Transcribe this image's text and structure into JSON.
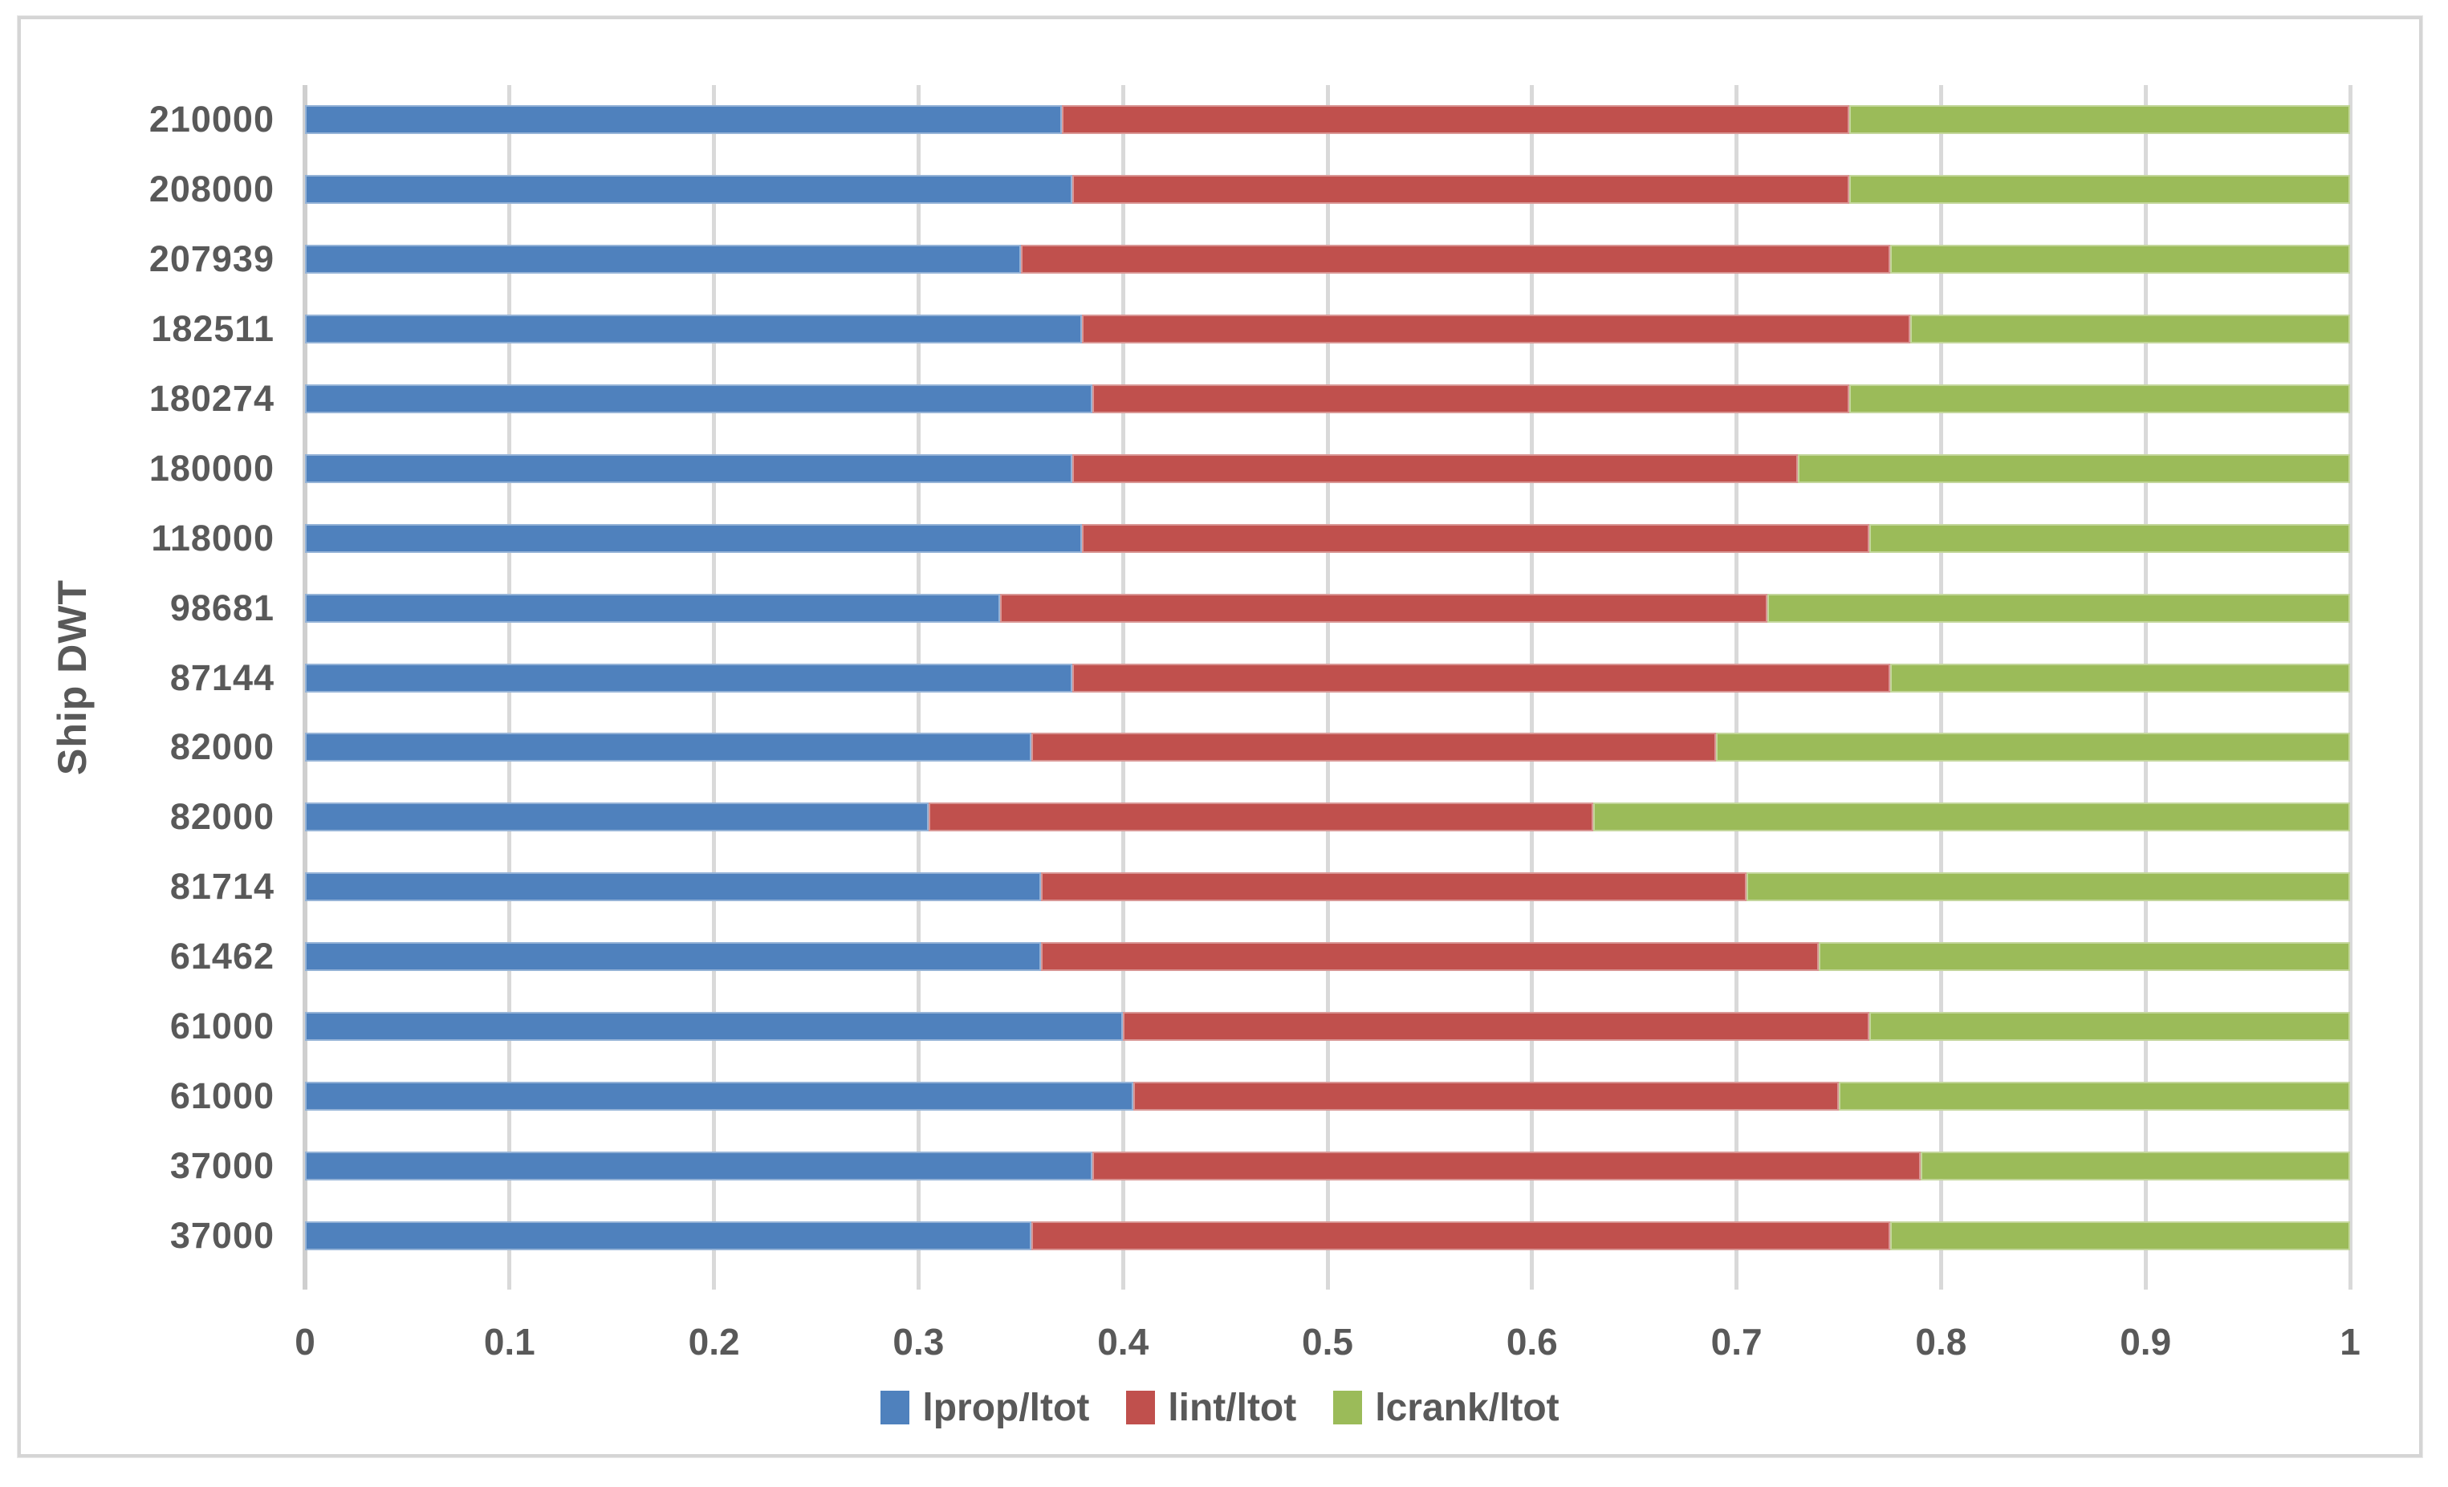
{
  "chart_data": {
    "type": "bar",
    "orientation": "horizontal",
    "stacked": true,
    "title": "",
    "xlabel": "",
    "ylabel": "Ship DWT",
    "xlim": [
      0,
      1
    ],
    "grid": true,
    "legend_position": "bottom",
    "x_ticks": [
      "0",
      "0.1",
      "0.2",
      "0.3",
      "0.4",
      "0.5",
      "0.6",
      "0.7",
      "0.8",
      "0.9",
      "1"
    ],
    "x_tick_values": [
      0,
      0.1,
      0.2,
      0.3,
      0.4,
      0.5,
      0.6,
      0.7,
      0.8,
      0.9,
      1
    ],
    "categories": [
      "210000",
      "208000",
      "207939",
      "182511",
      "180274",
      "180000",
      "118000",
      "98681",
      "87144",
      "82000",
      "82000",
      "81714",
      "61462",
      "61000",
      "61000",
      "37000",
      "37000"
    ],
    "series": [
      {
        "name": "lprop/ltot",
        "color": "#4f81bd",
        "border_color": "#95b3d7",
        "values": [
          0.37,
          0.375,
          0.35,
          0.38,
          0.385,
          0.375,
          0.38,
          0.34,
          0.375,
          0.355,
          0.305,
          0.36,
          0.36,
          0.4,
          0.405,
          0.385,
          0.355
        ]
      },
      {
        "name": "lint/ltot",
        "color": "#c0504d",
        "border_color": "#d99694",
        "values": [
          0.385,
          0.38,
          0.425,
          0.405,
          0.37,
          0.355,
          0.385,
          0.375,
          0.4,
          0.335,
          0.325,
          0.345,
          0.38,
          0.365,
          0.345,
          0.405,
          0.42
        ]
      },
      {
        "name": "lcrank/ltot",
        "color": "#9bbb59",
        "border_color": "#c3d69b",
        "values": [
          0.245,
          0.245,
          0.225,
          0.215,
          0.245,
          0.27,
          0.235,
          0.285,
          0.225,
          0.31,
          0.37,
          0.295,
          0.26,
          0.235,
          0.25,
          0.21,
          0.225
        ]
      }
    ]
  },
  "styles": {
    "gridline_color": "#d9d9d9",
    "axis_line_color": "#cfcfcf",
    "text_color": "#595959",
    "frame_border_color": "#d5d5d5",
    "background": "#ffffff"
  }
}
